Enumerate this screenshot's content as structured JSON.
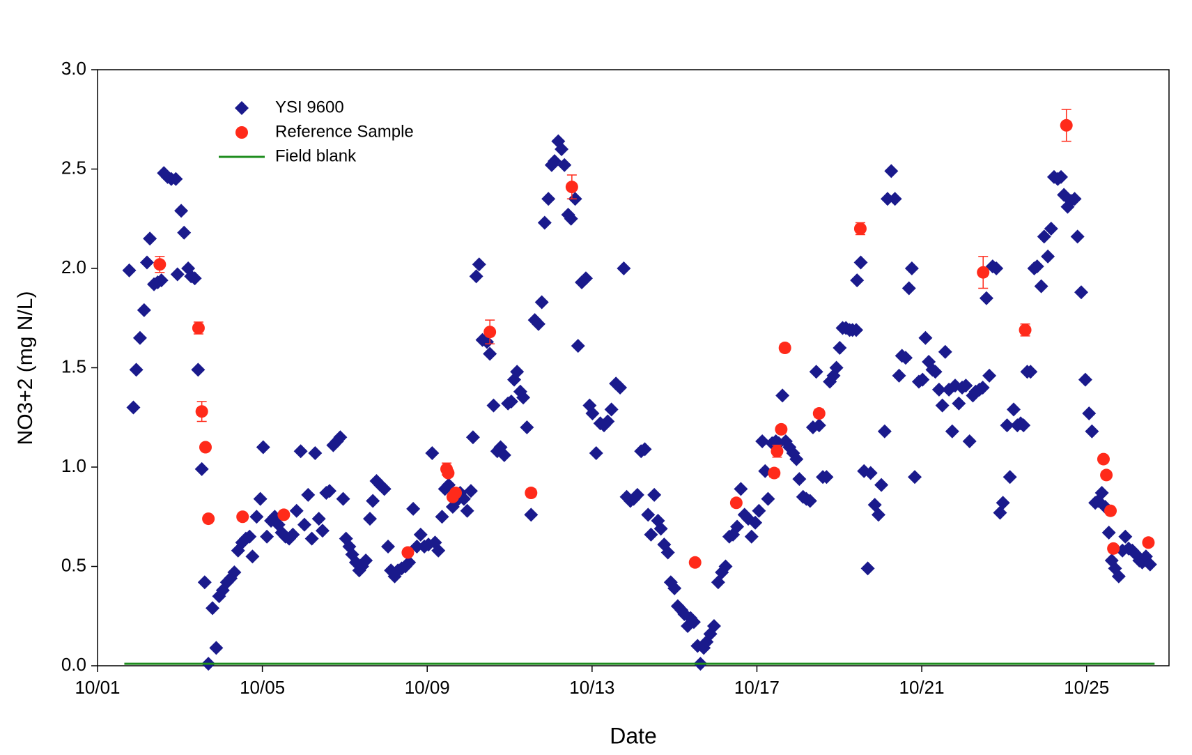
{
  "chart_data": {
    "type": "scatter",
    "x_label": "Date",
    "y_label": "NO3+2 (mg N/L)",
    "xlim": [
      1,
      27
    ],
    "xticks": [
      {
        "value": 1,
        "label": "10/01"
      },
      {
        "value": 5,
        "label": "10/05"
      },
      {
        "value": 9,
        "label": "10/09"
      },
      {
        "value": 13,
        "label": "10/13"
      },
      {
        "value": 17,
        "label": "10/17"
      },
      {
        "value": 21,
        "label": "10/21"
      },
      {
        "value": 25,
        "label": "10/25"
      }
    ],
    "ylim": [
      0,
      3
    ],
    "yticks": [
      {
        "value": 0,
        "label": "0.0"
      },
      0.5,
      {
        "value": 1,
        "label": "1.0"
      },
      1.5,
      {
        "value": 2,
        "label": "2.0"
      },
      2.5,
      {
        "value": 3,
        "label": "3.0"
      }
    ],
    "legend": "upper left",
    "series": [
      {
        "name": "YSI 9600",
        "color": "#1a1a8c",
        "marker": "diamond",
        "x": [
          1.77,
          1.87,
          1.94,
          2.03,
          2.13,
          2.2,
          2.27,
          2.37,
          2.46,
          2.55,
          2.61,
          2.7,
          2.79,
          2.9,
          2.94,
          3.03,
          3.1,
          3.2,
          3.27,
          3.36,
          3.44,
          3.53,
          3.6,
          3.69,
          3.79,
          3.88,
          3.95,
          4.04,
          4.14,
          4.23,
          4.32,
          4.41,
          4.51,
          4.6,
          4.69,
          4.76,
          4.86,
          4.95,
          5.02,
          5.11,
          5.21,
          5.3,
          5.39,
          5.47,
          5.56,
          5.65,
          5.74,
          5.83,
          5.93,
          6.02,
          6.11,
          6.2,
          6.28,
          6.37,
          6.46,
          6.55,
          6.63,
          6.72,
          6.81,
          6.89,
          6.96,
          7.03,
          7.11,
          7.18,
          7.27,
          7.35,
          7.42,
          7.51,
          7.61,
          7.68,
          7.77,
          7.86,
          7.96,
          8.05,
          8.12,
          8.21,
          8.29,
          8.38,
          8.47,
          8.56,
          8.66,
          8.75,
          8.84,
          8.93,
          9.03,
          9.12,
          9.19,
          9.27,
          9.36,
          9.43,
          9.52,
          9.62,
          9.71,
          9.8,
          9.89,
          9.97,
          10.06,
          10.11,
          10.19,
          10.26,
          10.34,
          10.45,
          10.52,
          10.61,
          10.7,
          10.78,
          10.87,
          10.96,
          11.04,
          11.11,
          11.18,
          11.26,
          11.33,
          11.42,
          11.52,
          11.61,
          11.7,
          11.78,
          11.85,
          11.94,
          12.02,
          12.09,
          12.18,
          12.26,
          12.33,
          12.42,
          12.49,
          12.59,
          12.66,
          12.75,
          12.85,
          12.94,
          13.01,
          13.1,
          13.2,
          13.29,
          13.38,
          13.47,
          13.58,
          13.68,
          13.77,
          13.84,
          13.93,
          14.01,
          14.1,
          14.19,
          14.28,
          14.36,
          14.43,
          14.51,
          14.6,
          14.67,
          14.75,
          14.84,
          14.91,
          15.0,
          15.08,
          15.17,
          15.24,
          15.32,
          15.39,
          15.47,
          15.56,
          15.63,
          15.71,
          15.78,
          15.87,
          15.96,
          16.06,
          16.15,
          16.24,
          16.33,
          16.42,
          16.52,
          16.61,
          16.7,
          16.79,
          16.87,
          16.96,
          17.05,
          17.13,
          17.2,
          17.27,
          17.37,
          17.46,
          17.53,
          17.62,
          17.7,
          17.79,
          17.88,
          17.96,
          18.03,
          18.12,
          18.2,
          18.29,
          18.36,
          18.44,
          18.51,
          18.6,
          18.69,
          18.77,
          18.86,
          18.93,
          19.01,
          19.08,
          19.16,
          19.25,
          19.32,
          19.41,
          19.43,
          19.52,
          19.6,
          19.69,
          19.76,
          19.86,
          19.95,
          20.02,
          20.1,
          20.17,
          20.26,
          20.35,
          20.45,
          20.52,
          20.61,
          20.69,
          20.76,
          20.83,
          20.93,
          21.02,
          21.09,
          21.17,
          21.26,
          21.33,
          21.42,
          21.5,
          21.57,
          21.66,
          21.74,
          21.81,
          21.9,
          21.98,
          22.07,
          22.16,
          22.24,
          22.31,
          22.4,
          22.48,
          22.57,
          22.64,
          22.72,
          22.81,
          22.9,
          22.97,
          23.07,
          23.14,
          23.23,
          23.32,
          23.4,
          23.47,
          23.56,
          23.64,
          23.73,
          23.8,
          23.9,
          23.97,
          24.06,
          24.14,
          24.21,
          24.3,
          24.38,
          24.45,
          24.54,
          24.62,
          24.71,
          24.78,
          24.87,
          24.97,
          25.06,
          25.13,
          25.21,
          25.28,
          25.37,
          25.45,
          25.54,
          25.61,
          25.69,
          25.78,
          25.87,
          25.94,
          26.02,
          26.11,
          26.2,
          26.28,
          26.35,
          26.44,
          26.54
        ],
        "values": [
          1.99,
          1.3,
          1.49,
          1.65,
          1.79,
          2.03,
          2.15,
          1.92,
          1.93,
          1.94,
          2.48,
          2.46,
          2.45,
          2.45,
          1.97,
          2.29,
          2.18,
          2.0,
          1.96,
          1.95,
          1.49,
          0.99,
          0.42,
          0.01,
          0.29,
          0.09,
          0.35,
          0.38,
          0.42,
          0.44,
          0.47,
          0.58,
          0.62,
          0.64,
          0.65,
          0.55,
          0.75,
          0.84,
          1.1,
          0.65,
          0.73,
          0.75,
          0.71,
          0.67,
          0.65,
          0.64,
          0.66,
          0.78,
          1.08,
          0.71,
          0.86,
          0.64,
          1.07,
          0.74,
          0.68,
          0.87,
          0.88,
          1.11,
          1.13,
          1.15,
          0.84,
          0.64,
          0.6,
          0.56,
          0.52,
          0.48,
          0.5,
          0.53,
          0.74,
          0.83,
          0.93,
          0.91,
          0.89,
          0.6,
          0.48,
          0.45,
          0.48,
          0.49,
          0.5,
          0.52,
          0.79,
          0.6,
          0.66,
          0.6,
          0.61,
          1.07,
          0.62,
          0.58,
          0.75,
          0.89,
          0.91,
          0.8,
          0.83,
          0.87,
          0.84,
          0.78,
          0.88,
          1.15,
          1.96,
          2.02,
          1.64,
          1.63,
          1.57,
          1.31,
          1.08,
          1.1,
          1.06,
          1.32,
          1.33,
          1.44,
          1.48,
          1.38,
          1.35,
          1.2,
          0.76,
          1.74,
          1.72,
          1.83,
          2.23,
          2.35,
          2.52,
          2.54,
          2.64,
          2.6,
          2.52,
          2.27,
          2.25,
          2.35,
          1.61,
          1.93,
          1.95,
          1.31,
          1.27,
          1.07,
          1.22,
          1.21,
          1.23,
          1.29,
          1.42,
          1.4,
          2.0,
          0.85,
          0.83,
          0.84,
          0.86,
          1.08,
          1.09,
          0.76,
          0.66,
          0.86,
          0.73,
          0.69,
          0.61,
          0.57,
          0.42,
          0.39,
          0.3,
          0.28,
          0.26,
          0.2,
          0.24,
          0.22,
          0.1,
          0.01,
          0.09,
          0.12,
          0.16,
          0.2,
          0.42,
          0.47,
          0.5,
          0.65,
          0.66,
          0.7,
          0.89,
          0.76,
          0.74,
          0.65,
          0.72,
          0.78,
          1.13,
          0.98,
          0.84,
          1.12,
          1.13,
          1.12,
          1.36,
          1.13,
          1.1,
          1.07,
          1.04,
          0.94,
          0.85,
          0.84,
          0.83,
          1.2,
          1.48,
          1.21,
          0.95,
          0.95,
          1.43,
          1.46,
          1.5,
          1.6,
          1.7,
          1.7,
          1.69,
          1.69,
          1.69,
          1.94,
          2.03,
          0.98,
          0.49,
          0.97,
          0.81,
          0.76,
          0.91,
          1.18,
          2.35,
          2.49,
          2.35,
          1.46,
          1.56,
          1.55,
          1.9,
          2.0,
          0.95,
          1.43,
          1.44,
          1.65,
          1.53,
          1.49,
          1.48,
          1.39,
          1.31,
          1.58,
          1.39,
          1.18,
          1.41,
          1.32,
          1.4,
          1.41,
          1.13,
          1.36,
          1.38,
          1.39,
          1.4,
          1.85,
          1.46,
          2.01,
          2.0,
          0.77,
          0.82,
          1.21,
          0.95,
          1.29,
          1.21,
          1.22,
          1.21,
          1.48,
          1.48,
          2.0,
          2.01,
          1.91,
          2.16,
          2.06,
          2.2,
          2.46,
          2.45,
          2.46,
          2.37,
          2.31,
          2.34,
          2.35,
          2.16,
          1.88,
          1.44,
          1.27,
          1.18,
          0.82,
          0.83,
          0.87,
          0.8,
          0.67,
          0.53,
          0.49,
          0.45,
          0.58,
          0.65,
          0.59,
          0.58,
          0.56,
          0.53,
          0.52,
          0.55,
          0.51
        ]
      },
      {
        "name": "Reference Sample",
        "color": "#ff2a1a",
        "marker": "circle",
        "x": [
          2.51,
          3.45,
          3.53,
          3.62,
          3.69,
          4.52,
          5.52,
          8.53,
          9.47,
          9.51,
          9.62,
          9.69,
          10.52,
          11.52,
          12.51,
          15.5,
          16.5,
          17.42,
          17.49,
          17.59,
          17.68,
          18.51,
          19.51,
          22.49,
          23.51,
          24.51,
          25.41,
          25.48,
          25.58,
          25.65,
          26.5
        ],
        "values": [
          2.02,
          1.7,
          1.28,
          1.1,
          0.74,
          0.75,
          0.76,
          0.57,
          0.99,
          0.97,
          0.85,
          0.87,
          1.68,
          0.87,
          2.41,
          0.52,
          0.82,
          0.97,
          1.08,
          1.19,
          1.6,
          1.27,
          2.2,
          1.98,
          1.69,
          2.72,
          1.04,
          0.96,
          0.78,
          0.59,
          0.62
        ],
        "errors": [
          0.04,
          0.03,
          0.05,
          0.01,
          0.01,
          0.01,
          0.01,
          0.01,
          0.03,
          0.01,
          0.01,
          0.01,
          0.06,
          0.02,
          0.06,
          0.01,
          0.01,
          0.02,
          0.03,
          0.01,
          0.02,
          0.02,
          0.03,
          0.08,
          0.03,
          0.08,
          0.01,
          0.01,
          0.01,
          0.01,
          0.01
        ]
      },
      {
        "name": "Field blank",
        "color": "#1e8c1e",
        "marker": "line",
        "x": [
          1.65,
          26.65
        ],
        "values": [
          0.01,
          0.01
        ]
      }
    ]
  }
}
